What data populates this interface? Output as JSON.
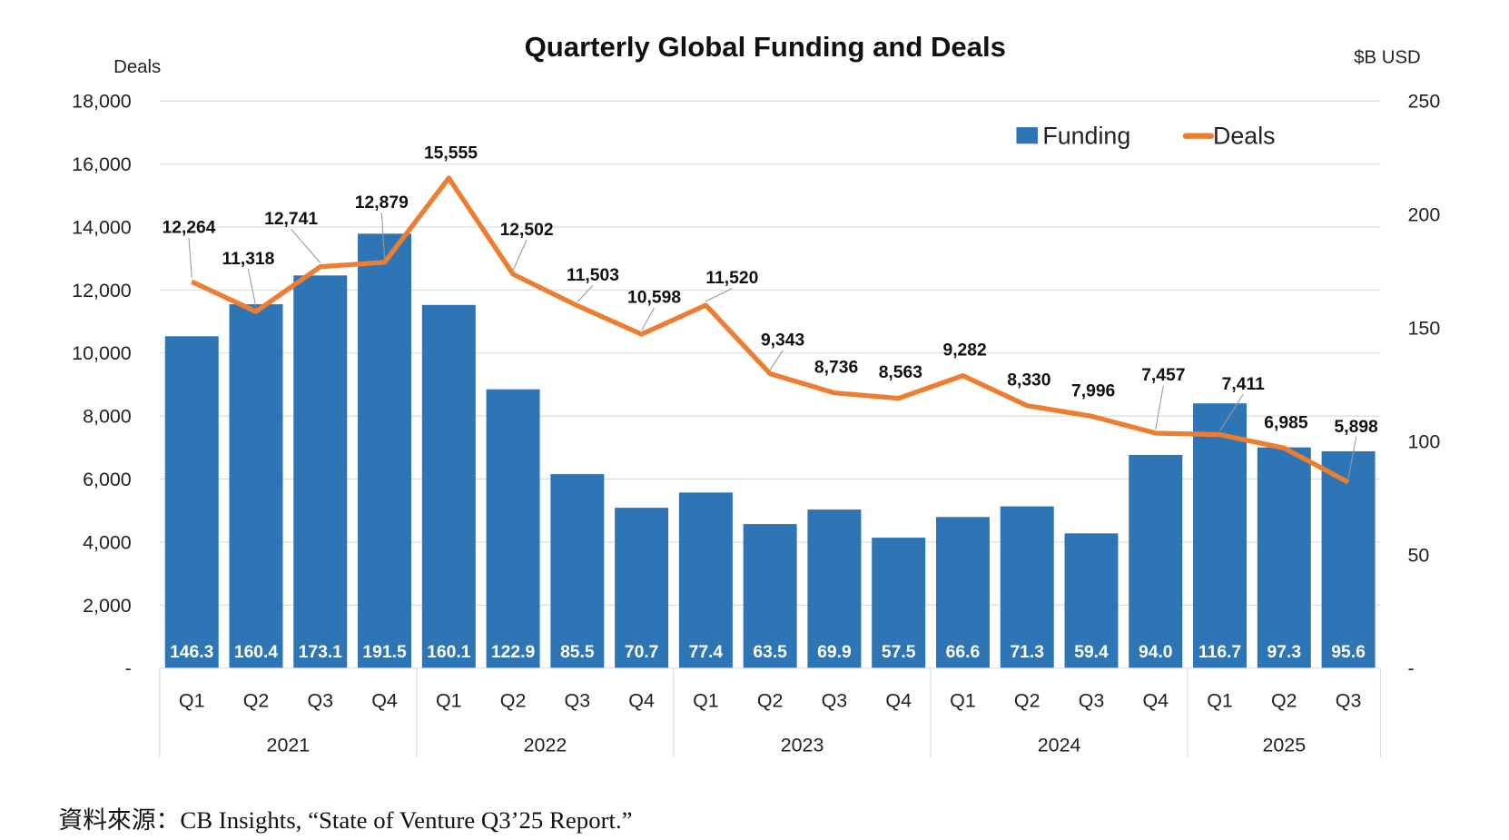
{
  "chart_data": {
    "type": "bar+line",
    "title": "Quarterly Global Funding and Deals",
    "left_axis": {
      "label": "Deals",
      "range": [
        0,
        18000
      ],
      "ticks": [
        "-",
        "2,000",
        "4,000",
        "6,000",
        "8,000",
        "10,000",
        "12,000",
        "14,000",
        "16,000",
        "18,000"
      ]
    },
    "right_axis": {
      "label": "$B USD",
      "range": [
        0,
        250
      ],
      "ticks": [
        "-",
        "50",
        "100",
        "150",
        "200",
        "250"
      ]
    },
    "grid": true,
    "legend_position": "top-right",
    "quarters": [
      "Q1",
      "Q2",
      "Q3",
      "Q4",
      "Q1",
      "Q2",
      "Q3",
      "Q4",
      "Q1",
      "Q2",
      "Q3",
      "Q4",
      "Q1",
      "Q2",
      "Q3",
      "Q4",
      "Q1",
      "Q2",
      "Q3"
    ],
    "years": [
      {
        "label": "2021",
        "count": 4
      },
      {
        "label": "2022",
        "count": 4
      },
      {
        "label": "2023",
        "count": 4
      },
      {
        "label": "2024",
        "count": 4
      },
      {
        "label": "2025",
        "count": 3
      }
    ],
    "series": [
      {
        "name": "Funding",
        "type": "bar",
        "axis": "right",
        "color": "#2E75B6",
        "values": [
          146.3,
          160.4,
          173.1,
          191.5,
          160.1,
          122.9,
          85.5,
          70.7,
          77.4,
          63.5,
          69.9,
          57.5,
          66.6,
          71.3,
          59.4,
          94.0,
          116.7,
          97.3,
          95.6
        ],
        "labels": [
          "146.3",
          "160.4",
          "173.1",
          "191.5",
          "160.1",
          "122.9",
          "85.5",
          "70.7",
          "77.4",
          "63.5",
          "69.9",
          "57.5",
          "66.6",
          "71.3",
          "59.4",
          "94.0",
          "116.7",
          "97.3",
          "95.6"
        ]
      },
      {
        "name": "Deals",
        "type": "line",
        "axis": "left",
        "color": "#ED7D31",
        "values": [
          12264,
          11318,
          12741,
          12879,
          15555,
          12502,
          11503,
          10598,
          11520,
          9343,
          8736,
          8563,
          9282,
          8330,
          7996,
          7457,
          7411,
          6985,
          5898
        ],
        "labels": [
          "12,264",
          "11,318",
          "12,741",
          "12,879",
          "15,555",
          "12,502",
          "11,503",
          "10,598",
          "11,520",
          "9,343",
          "8,736",
          "8,563",
          "9,282",
          "8,330",
          "7,996",
          "7,457",
          "7,411",
          "6,985",
          "5,898"
        ]
      }
    ]
  },
  "source": "資料來源：CB Insights, “State of Venture Q3’25 Report.”"
}
